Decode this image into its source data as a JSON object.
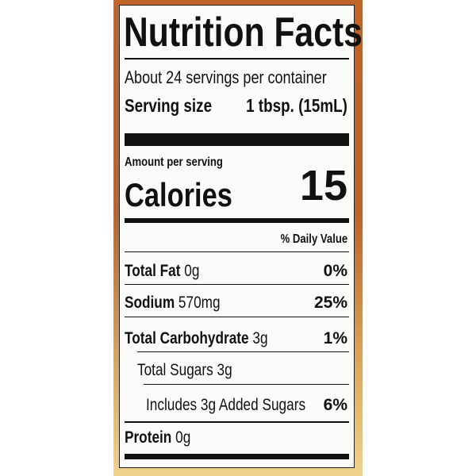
{
  "label": {
    "title": "Nutrition Facts",
    "servings": "About 24 servings per container",
    "serving_size_label": "Serving size",
    "serving_size_value": "1 tbsp. (15mL)",
    "amount_per_serving": "Amount per serving",
    "calories_label": "Calories",
    "calories_value": "15",
    "daily_value_header": "% Daily Value",
    "rows": [
      {
        "name": "Total Fat",
        "amount": "0g",
        "dv": "0%"
      },
      {
        "name": "Sodium",
        "amount": "570mg",
        "dv": "25%"
      },
      {
        "name": "Total Carbohydrate",
        "amount": "3g",
        "dv": "1%"
      },
      {
        "name": "Total Sugars 3g",
        "amount": "",
        "dv": ""
      },
      {
        "name": "Includes 3g Added Sugars",
        "amount": "",
        "dv": "6%"
      },
      {
        "name": "Protein",
        "amount": "0g",
        "dv": ""
      }
    ]
  },
  "colors": {
    "bottle": "#c0642a",
    "label": "#fbfbfa",
    "ink": "#111111"
  }
}
